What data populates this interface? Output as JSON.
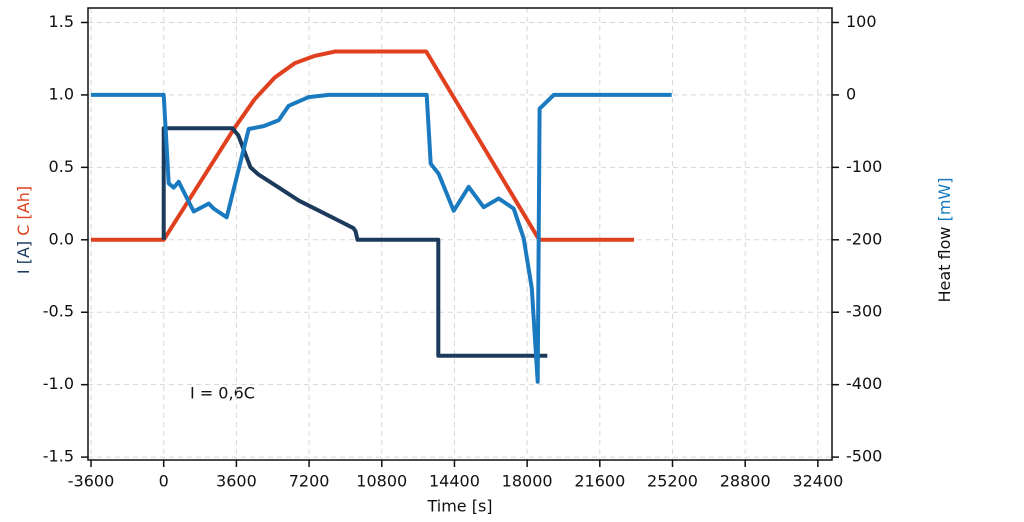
{
  "chart_data": {
    "type": "line",
    "xlabel": "Time [s]",
    "ylabel": [
      {
        "text": "I [A]",
        "color": "#1b3a5c"
      },
      {
        "text": "C [Ah]",
        "color": "#e0401e"
      }
    ],
    "y2label": [
      {
        "text": "Heat flow",
        "color": "#111111"
      },
      {
        "text": "[mW]",
        "color": "#1a7abf"
      }
    ],
    "annotation": "I = 0,6C",
    "xlim": [
      -3750,
      33100
    ],
    "xticks": [
      -3600,
      0,
      3600,
      7200,
      10800,
      14400,
      18000,
      21600,
      25200,
      28800,
      32400
    ],
    "ylim": [
      -1.52,
      1.6
    ],
    "yticks": [
      1.5,
      {
        "value": 1,
        "label": "1.0"
      },
      0.5,
      {
        "value": 0,
        "label": "0.0"
      },
      -0.5,
      {
        "value": -1,
        "label": "-1.0"
      },
      -1.5
    ],
    "y2lim": [
      -504,
      120
    ],
    "y2ticks": [
      100,
      0,
      -100,
      -200,
      -300,
      -400,
      -500
    ],
    "grid": true,
    "series": [
      {
        "color": "#e0401e",
        "axis": "y",
        "x": [
          -3600,
          0,
          3500,
          4500,
          5500,
          6500,
          7500,
          8500,
          13000,
          18600,
          23300
        ],
        "values": [
          0,
          0,
          0.77,
          0.97,
          1.12,
          1.22,
          1.27,
          1.3,
          1.3,
          0,
          0
        ]
      },
      {
        "color": "#1b3a5c",
        "axis": "y",
        "x": [
          0,
          0,
          3400,
          3700,
          4300,
          4700,
          5700,
          6700,
          7700,
          8700,
          9400,
          9500,
          9600,
          13600,
          13600,
          19000
        ],
        "values": [
          0,
          0.77,
          0.77,
          0.72,
          0.5,
          0.45,
          0.36,
          0.27,
          0.2,
          0.13,
          0.08,
          0.06,
          0,
          0,
          -0.8,
          -0.8
        ]
      },
      {
        "color": "#1a7abf",
        "axis": "y2",
        "x": [
          -3600,
          0,
          248,
          495,
          743,
          1486,
          2229,
          2476,
          3120,
          4210,
          4953,
          5696,
          6190,
          7180,
          8170,
          13026,
          13225,
          13620,
          14363,
          15106,
          15850,
          16590,
          17335,
          17830,
          18230,
          18524,
          18620,
          19320,
          25160
        ],
        "values": [
          0,
          0,
          -122,
          -128,
          -120,
          -161,
          -150,
          -157,
          -169,
          -47,
          -43,
          -35,
          -15,
          -3,
          0,
          0,
          -95,
          -109,
          -160,
          -127,
          -155,
          -143,
          -157,
          -198,
          -267,
          -396,
          -19,
          0,
          0
        ]
      }
    ]
  }
}
